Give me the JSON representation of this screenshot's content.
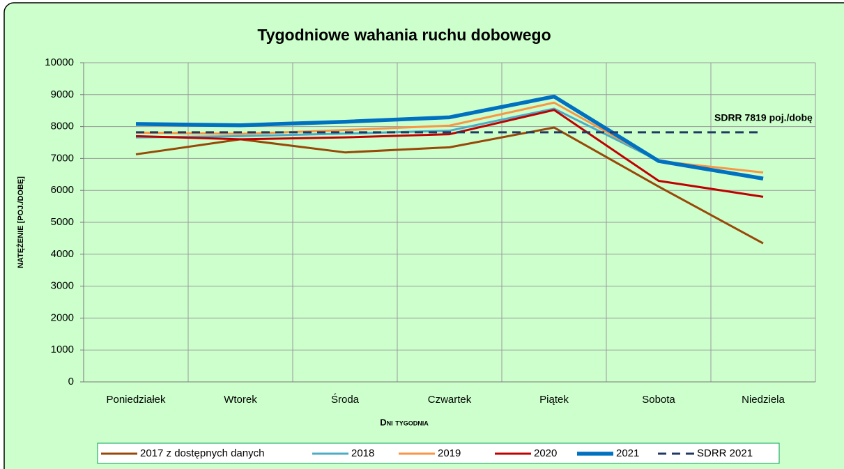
{
  "chart_data": {
    "type": "line",
    "title": "Tygodniowe wahania ruchu dobowego",
    "x_label": "Dni tygodnia",
    "y_label": "NATĘŻENIE [POJ./DOBĘ]",
    "annotation": "SDRR 7819  poj./dobę",
    "categories": [
      "Poniedziałek",
      "Wtorek",
      "Środa",
      "Czwartek",
      "Piątek",
      "Sobota",
      "Niedziela"
    ],
    "series": [
      {
        "name": "2017  z dostępnych danych",
        "color": "#984807",
        "values": [
          7130,
          7600,
          7190,
          7350,
          7970,
          6120,
          4340
        ]
      },
      {
        "name": "2018",
        "color": "#4bacc6",
        "values": [
          7660,
          7700,
          7780,
          7870,
          8560,
          6930,
          6380
        ]
      },
      {
        "name": "2019",
        "color": "#f79646",
        "values": [
          7810,
          7770,
          7890,
          8030,
          8750,
          6920,
          6560
        ]
      },
      {
        "name": "2020",
        "color": "#c00000",
        "values": [
          7700,
          7600,
          7660,
          7760,
          8520,
          6300,
          5800
        ]
      },
      {
        "name": "2021",
        "color": "#0070c0",
        "values": [
          8080,
          8040,
          8150,
          8290,
          8940,
          6920,
          6370
        ]
      },
      {
        "name": "SDRR 2021",
        "color": "#1f3864",
        "dashed": true,
        "values": [
          7819,
          7819,
          7819,
          7819,
          7819,
          7819,
          7819
        ]
      }
    ],
    "ylim": [
      0,
      10000
    ],
    "yticks": [
      0,
      1000,
      2000,
      3000,
      4000,
      5000,
      6000,
      7000,
      8000,
      9000,
      10000
    ],
    "grid": true
  }
}
